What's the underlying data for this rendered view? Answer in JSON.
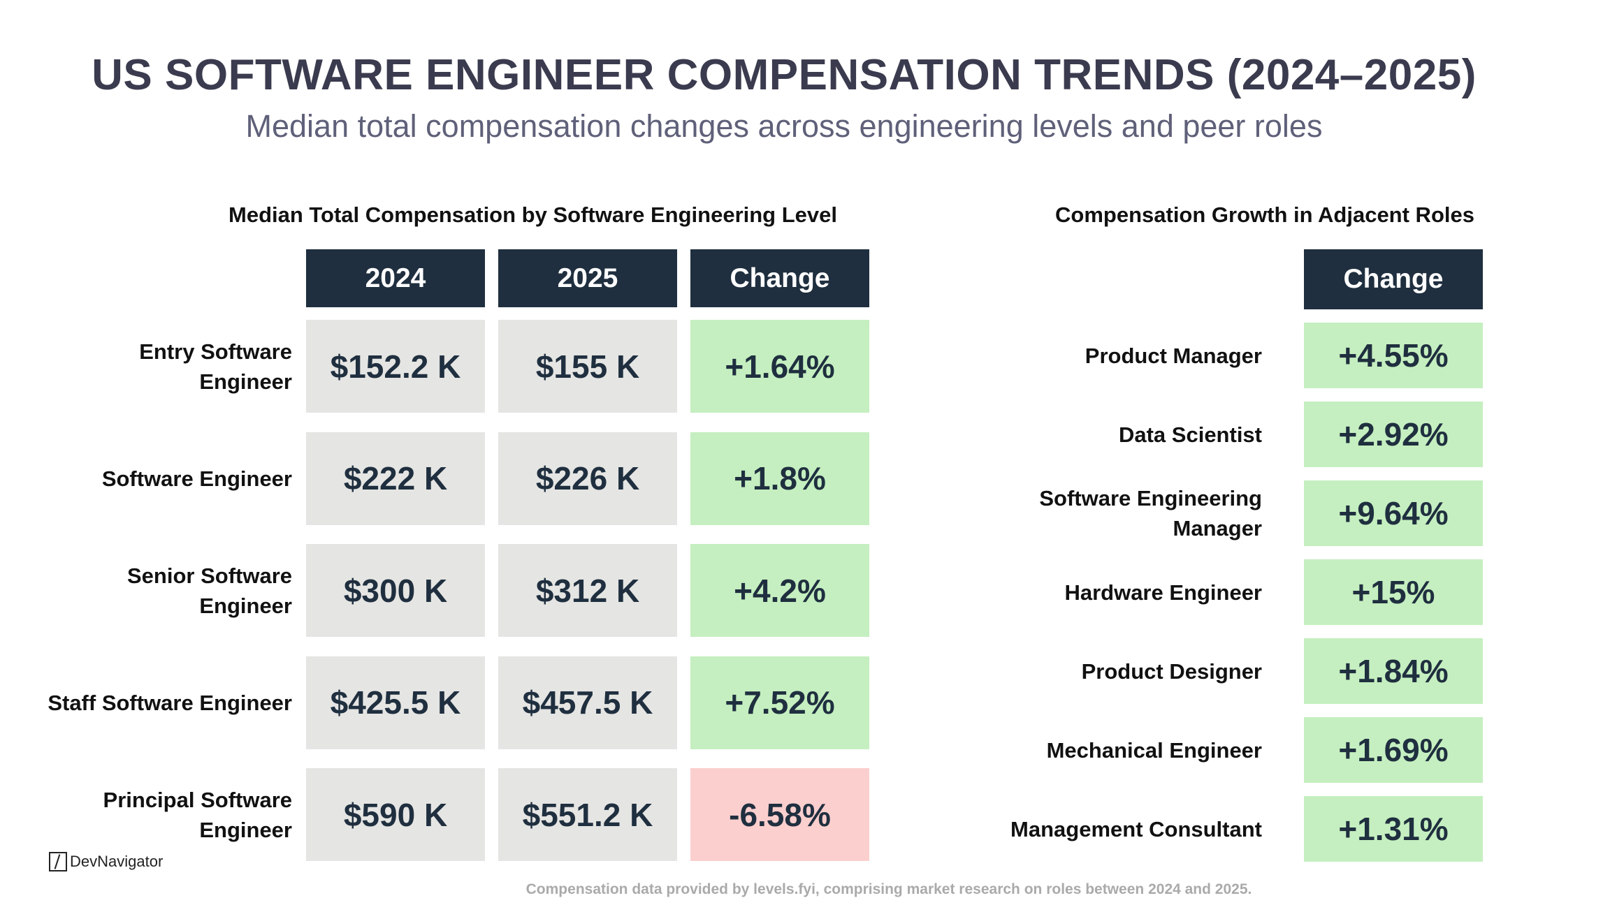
{
  "title": "US SOFTWARE ENGINEER COMPENSATION TRENDS (2024–2025)",
  "subtitle": "Median total compensation changes across engineering levels and peer roles",
  "levels_table": {
    "title": "Median Total Compensation by Software Engineering Level",
    "headers": [
      "2024",
      "2025",
      "Change"
    ],
    "rows": [
      {
        "label": "Entry Software Engineer",
        "v2024": "$152.2 K",
        "v2025": "$155 K",
        "change": "+1.64%",
        "trend": "up"
      },
      {
        "label": "Software Engineer",
        "v2024": "$222 K",
        "v2025": "$226 K",
        "change": "+1.8%",
        "trend": "up"
      },
      {
        "label": "Senior Software Engineer",
        "v2024": "$300 K",
        "v2025": "$312 K",
        "change": "+4.2%",
        "trend": "up"
      },
      {
        "label": "Staff Software Engineer",
        "v2024": "$425.5 K",
        "v2025": "$457.5 K",
        "change": "+7.52%",
        "trend": "up"
      },
      {
        "label": "Principal Software Engineer",
        "v2024": "$590 K",
        "v2025": "$551.2 K",
        "change": "-6.58%",
        "trend": "down"
      }
    ]
  },
  "roles_table": {
    "title": "Compensation Growth in Adjacent Roles",
    "header": "Change",
    "rows": [
      {
        "label": "Product Manager",
        "change": "+4.55%"
      },
      {
        "label": "Data Scientist",
        "change": "+2.92%"
      },
      {
        "label": "Software Engineering Manager",
        "change": "+9.64%"
      },
      {
        "label": "Hardware Engineer",
        "change": "+15%"
      },
      {
        "label": "Product Designer",
        "change": "+1.84%"
      },
      {
        "label": "Mechanical Engineer",
        "change": "+1.69%"
      },
      {
        "label": "Management Consultant",
        "change": "+1.31%"
      }
    ]
  },
  "logo": "DevNavigator",
  "footer": "Compensation data provided by levels.fyi, comprising market research on roles between 2024 and 2025.",
  "colors": {
    "header": "#1f2f3f",
    "value_cell": "#e5e5e3",
    "positive": "#c5efc0",
    "negative": "#fbcfce",
    "title": "#3b3b4f"
  }
}
